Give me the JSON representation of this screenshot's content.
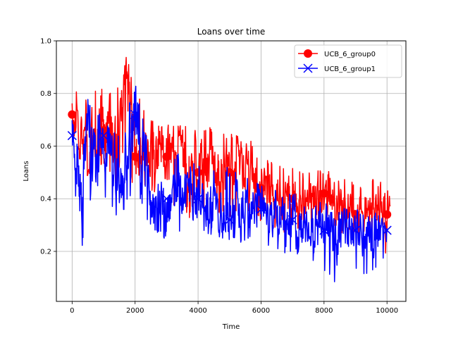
{
  "chart_data": {
    "type": "line",
    "title": "Loans over time",
    "xlabel": "Time",
    "ylabel": "Loans",
    "xlim": [
      -500,
      10600
    ],
    "ylim": [
      0.01,
      1.0
    ],
    "xticks": [
      0,
      2000,
      4000,
      6000,
      8000,
      10000
    ],
    "xtick_labels": [
      "0",
      "2000",
      "4000",
      "6000",
      "8000",
      "10000"
    ],
    "yticks": [
      0.2,
      0.4,
      0.6,
      0.8,
      1.0
    ],
    "ytick_labels": [
      "0.2",
      "0.4",
      "0.6",
      "0.8",
      "1.0"
    ],
    "grid": true,
    "legend_position": "top-right",
    "series": [
      {
        "name": "UCB_6_group0",
        "color": "#ff0000",
        "marker": "circle",
        "marker_x": [
          0,
          1000,
          2000,
          3000,
          4000,
          5000,
          6000,
          7000,
          8000,
          9000,
          10000
        ],
        "x": [
          0,
          500,
          1000,
          1500,
          1650,
          2000,
          2500,
          3000,
          3500,
          4000,
          4500,
          5000,
          5500,
          6000,
          6500,
          7000,
          7500,
          8000,
          8500,
          9000,
          9500,
          10000,
          10100
        ],
        "y": [
          0.72,
          0.62,
          0.66,
          0.62,
          0.96,
          0.56,
          0.58,
          0.56,
          0.54,
          0.5,
          0.52,
          0.5,
          0.52,
          0.44,
          0.42,
          0.4,
          0.4,
          0.42,
          0.38,
          0.34,
          0.36,
          0.34,
          0.38
        ],
        "low": [
          0.6,
          0.48,
          0.52,
          0.44,
          0.6,
          0.4,
          0.42,
          0.36,
          0.36,
          0.28,
          0.34,
          0.32,
          0.36,
          0.3,
          0.28,
          0.26,
          0.28,
          0.3,
          0.26,
          0.24,
          0.22,
          0.18,
          0.26
        ],
        "high": [
          0.84,
          0.8,
          0.82,
          0.84,
          0.96,
          0.84,
          0.7,
          0.68,
          0.68,
          0.66,
          0.68,
          0.66,
          0.64,
          0.58,
          0.54,
          0.52,
          0.52,
          0.52,
          0.48,
          0.46,
          0.48,
          0.46,
          0.42
        ]
      },
      {
        "name": "UCB_6_group1",
        "color": "#0000ff",
        "marker": "x",
        "marker_x": [
          0,
          1000,
          2000,
          3000,
          4000,
          5000,
          6000,
          7000,
          8000,
          9000,
          10000
        ],
        "x": [
          0,
          300,
          500,
          700,
          1000,
          1500,
          2000,
          2500,
          3000,
          3500,
          4000,
          4500,
          5000,
          5500,
          6000,
          6500,
          7000,
          7500,
          8000,
          8500,
          9000,
          9500,
          10000
        ],
        "y": [
          0.64,
          0.4,
          0.7,
          0.52,
          0.64,
          0.44,
          0.72,
          0.38,
          0.4,
          0.42,
          0.4,
          0.38,
          0.32,
          0.4,
          0.36,
          0.34,
          0.32,
          0.3,
          0.28,
          0.26,
          0.28,
          0.26,
          0.28
        ],
        "low": [
          0.5,
          0.18,
          0.4,
          0.38,
          0.4,
          0.3,
          0.46,
          0.28,
          0.24,
          0.28,
          0.28,
          0.26,
          0.22,
          0.24,
          0.22,
          0.2,
          0.18,
          0.18,
          0.12,
          0.06,
          0.12,
          0.1,
          0.18
        ],
        "high": [
          0.72,
          0.56,
          0.78,
          0.76,
          0.7,
          0.66,
          0.84,
          0.56,
          0.6,
          0.56,
          0.54,
          0.52,
          0.52,
          0.48,
          0.46,
          0.44,
          0.42,
          0.42,
          0.4,
          0.38,
          0.36,
          0.34,
          0.36
        ]
      }
    ]
  }
}
